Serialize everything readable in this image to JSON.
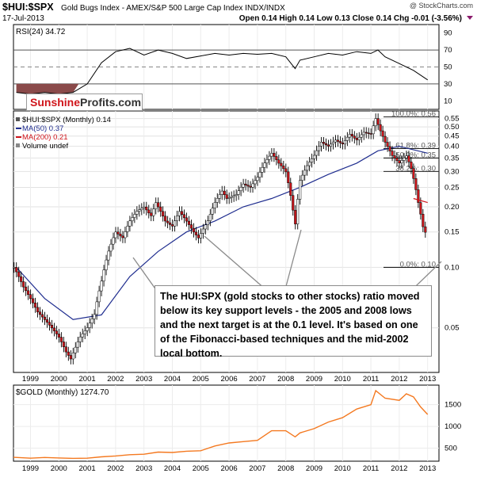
{
  "header": {
    "symbol": "$HUI:$SPX",
    "description": "Gold Bugs Index - AMEX/S&P 500 Large Cap Index INDX/INDX",
    "watermark": "@ StockCharts.com",
    "date": "17-Jul-2013",
    "ohlc": "Open 0.14 High 0.14 Low 0.13 Close 0.14 Chg -0.01 (-3.56%)"
  },
  "brand": {
    "part1": "Sunshine",
    "part2": "Profits.com"
  },
  "rsi_panel": {
    "label": "RSI(24) 34.72",
    "y_ticks": [
      "90",
      "70",
      "50",
      "30",
      "10"
    ],
    "current": 34.72
  },
  "main_legend": {
    "series": "$HUI:$SPX (Monthly) 0.14",
    "ma50": "MA(50) 0.37",
    "ma200": "MA(200) 0.21",
    "volume": "Volume undef"
  },
  "fib_labels": [
    "100.0%: 0.56",
    "61.8%: 0.39",
    "50.0%: 0.35",
    "38.2%: 0.30",
    "0.0%: 0.10"
  ],
  "annotation": "The HUI:SPX (gold stocks to other stocks) ratio moved below its key support levels - the 2005 and 2008 lows and the next target is at the 0.1 level. It's based on one of the Fibonacci-based techniques and the mid-2002 local bottom.",
  "gold_panel": {
    "label": "$GOLD (Monthly) 1274.70",
    "y_ticks": [
      "1500",
      "1000",
      "500"
    ]
  },
  "colors": {
    "candle": "#d0151b",
    "ma50": "#1f2d8f",
    "gold": "#f47920",
    "rsi": "#000000",
    "rsi_fill": "#8a4a4a"
  },
  "chart_data": [
    {
      "type": "line",
      "title": "RSI(24)",
      "ylim": [
        0,
        100
      ],
      "x": [
        1999.0,
        1999.5,
        2000.0,
        2000.5,
        2001.0,
        2001.5,
        2002.0,
        2002.5,
        2003.0,
        2003.5,
        2004.0,
        2004.5,
        2005.0,
        2005.5,
        2006.0,
        2006.5,
        2007.0,
        2007.5,
        2008.0,
        2008.5,
        2008.83,
        2009.0,
        2009.5,
        2010.0,
        2010.5,
        2011.0,
        2011.5,
        2011.75,
        2012.0,
        2012.5,
        2013.0,
        2013.5
      ],
      "values": [
        20,
        18,
        20,
        18,
        20,
        30,
        55,
        68,
        72,
        64,
        70,
        66,
        60,
        63,
        66,
        64,
        66,
        65,
        66,
        62,
        48,
        58,
        62,
        66,
        64,
        68,
        66,
        70,
        62,
        54,
        46,
        34.72
      ]
    },
    {
      "type": "line",
      "title": "$HUI:$SPX (Monthly)",
      "scale": "log",
      "ylim": [
        0.03,
        0.6
      ],
      "xlim": [
        1998.9,
        2013.9
      ],
      "x": [
        1998.92,
        1999.25,
        1999.5,
        1999.75,
        2000.0,
        2000.25,
        2000.5,
        2000.75,
        2000.92,
        2001.25,
        2001.5,
        2001.75,
        2002.0,
        2002.25,
        2002.5,
        2002.75,
        2003.0,
        2003.25,
        2003.5,
        2003.75,
        2003.92,
        2004.25,
        2004.5,
        2004.75,
        2005.0,
        2005.25,
        2005.42,
        2005.75,
        2006.0,
        2006.25,
        2006.42,
        2006.75,
        2007.0,
        2007.25,
        2007.5,
        2007.75,
        2008.0,
        2008.25,
        2008.5,
        2008.83,
        2009.0,
        2009.25,
        2009.5,
        2009.75,
        2010.0,
        2010.25,
        2010.5,
        2010.75,
        2011.0,
        2011.25,
        2011.5,
        2011.67,
        2011.83,
        2012.0,
        2012.25,
        2012.5,
        2012.75,
        2012.92,
        2013.17,
        2013.33,
        2013.5
      ],
      "values": [
        0.1,
        0.08,
        0.07,
        0.06,
        0.055,
        0.05,
        0.045,
        0.038,
        0.035,
        0.045,
        0.05,
        0.058,
        0.085,
        0.12,
        0.15,
        0.14,
        0.17,
        0.19,
        0.2,
        0.18,
        0.21,
        0.17,
        0.16,
        0.19,
        0.17,
        0.15,
        0.14,
        0.17,
        0.21,
        0.24,
        0.22,
        0.23,
        0.26,
        0.25,
        0.28,
        0.33,
        0.37,
        0.33,
        0.3,
        0.16,
        0.27,
        0.32,
        0.36,
        0.42,
        0.4,
        0.43,
        0.41,
        0.46,
        0.43,
        0.47,
        0.46,
        0.55,
        0.48,
        0.42,
        0.36,
        0.33,
        0.36,
        0.31,
        0.21,
        0.16,
        0.14
      ],
      "ma50": {
        "x": [
          1999.0,
          2000.0,
          2001.0,
          2002.0,
          2003.0,
          2004.0,
          2005.0,
          2006.0,
          2007.0,
          2008.0,
          2009.0,
          2010.0,
          2011.0,
          2011.75,
          2012.5,
          2013.5
        ],
        "values": [
          0.1,
          0.07,
          0.055,
          0.058,
          0.09,
          0.12,
          0.15,
          0.17,
          0.2,
          0.22,
          0.25,
          0.29,
          0.33,
          0.38,
          0.4,
          0.37
        ]
      },
      "ma200": {
        "x": [
          2013.0,
          2013.5
        ],
        "values": [
          0.22,
          0.21
        ]
      },
      "y_ticks": [
        0.55,
        0.5,
        0.45,
        0.4,
        0.35,
        0.3,
        0.25,
        0.2,
        0.15,
        0.1,
        0.05
      ],
      "y_tick_labels": [
        "0.55",
        "0.50",
        "0.45",
        "0.40",
        "0.35",
        "0.30",
        "0.25",
        "0.20",
        "0.15",
        "0.10",
        "0.05"
      ],
      "x_tick_labels": [
        "1999",
        "2000",
        "2001",
        "2002",
        "2003",
        "2004",
        "2005",
        "2006",
        "2007",
        "2008",
        "2009",
        "2010",
        "2011",
        "2012",
        "2013"
      ]
    },
    {
      "type": "line",
      "title": "$GOLD (Monthly)",
      "ylim": [
        200,
        1950
      ],
      "x": [
        1998.9,
        1999.5,
        2000.0,
        2000.5,
        2001.0,
        2001.5,
        2002.0,
        2002.5,
        2003.0,
        2003.5,
        2004.0,
        2004.5,
        2005.0,
        2005.5,
        2006.0,
        2006.5,
        2007.0,
        2007.5,
        2008.0,
        2008.5,
        2008.83,
        2009.0,
        2009.5,
        2010.0,
        2010.5,
        2011.0,
        2011.5,
        2011.67,
        2012.0,
        2012.5,
        2012.75,
        2013.0,
        2013.25,
        2013.5
      ],
      "values": [
        290,
        270,
        285,
        275,
        265,
        270,
        300,
        320,
        350,
        360,
        410,
        400,
        430,
        440,
        550,
        620,
        650,
        680,
        900,
        900,
        760,
        850,
        950,
        1100,
        1200,
        1400,
        1500,
        1825,
        1650,
        1600,
        1750,
        1680,
        1450,
        1274.7
      ],
      "y_ticks": [
        1500,
        1000,
        500
      ],
      "x_tick_labels": [
        "1999",
        "2000",
        "2001",
        "2002",
        "2003",
        "2004",
        "2005",
        "2006",
        "2007",
        "2008",
        "2009",
        "2010",
        "2011",
        "2012",
        "2013"
      ]
    }
  ]
}
